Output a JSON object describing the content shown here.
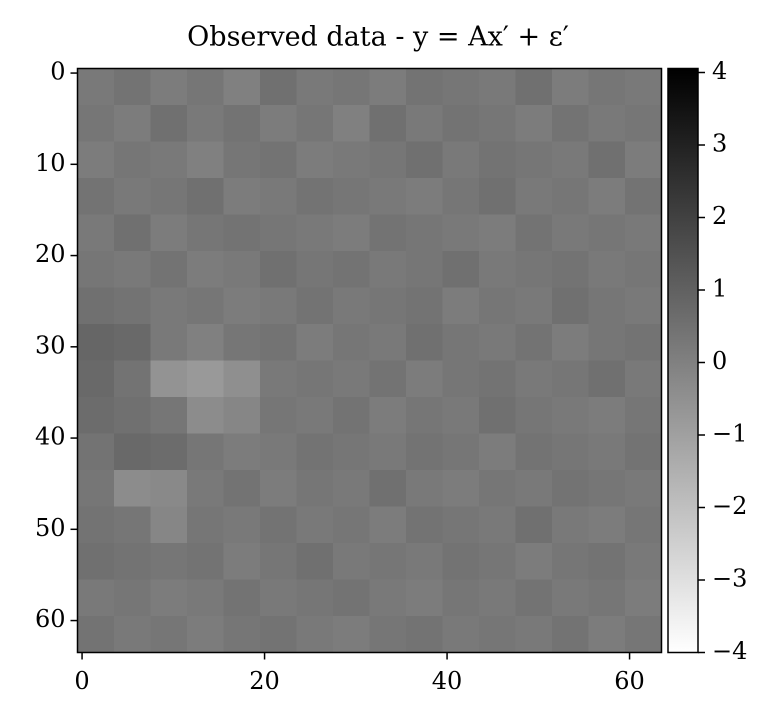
{
  "chart_data": {
    "type": "heatmap",
    "title": "Observed data - y = Ax′ + ε′",
    "colormap": "gray_r",
    "xlim": [
      -0.5,
      63.5
    ],
    "ylim": [
      63.5,
      -0.5
    ],
    "xticks": [
      0,
      20,
      40,
      60
    ],
    "yticks": [
      0,
      10,
      20,
      30,
      40,
      50,
      60
    ],
    "colorbar": {
      "lim": [
        -4,
        4
      ],
      "ticks": [
        {
          "value": -4,
          "label": "−4"
        },
        {
          "value": -3,
          "label": "−3"
        },
        {
          "value": -2,
          "label": "−2"
        },
        {
          "value": -1,
          "label": "−1"
        },
        0,
        1,
        2,
        3,
        4
      ]
    },
    "values": [
      [
        0.2,
        0.4,
        0.1,
        0.3,
        0.0,
        0.5,
        0.2,
        0.3,
        0.1,
        0.4,
        0.3,
        0.2,
        0.5,
        0.1,
        0.3,
        0.2
      ],
      [
        0.3,
        0.1,
        0.5,
        0.2,
        0.4,
        0.1,
        0.3,
        0.0,
        0.5,
        0.2,
        0.4,
        0.3,
        0.1,
        0.4,
        0.2,
        0.3
      ],
      [
        0.1,
        0.3,
        0.2,
        0.0,
        0.3,
        0.4,
        0.1,
        0.2,
        0.3,
        0.5,
        0.2,
        0.4,
        0.3,
        0.2,
        0.5,
        0.1
      ],
      [
        0.4,
        0.2,
        0.3,
        0.5,
        0.1,
        0.2,
        0.4,
        0.3,
        0.2,
        0.1,
        0.3,
        0.5,
        0.2,
        0.3,
        0.1,
        0.4
      ],
      [
        0.2,
        0.5,
        0.1,
        0.3,
        0.4,
        0.3,
        0.2,
        0.1,
        0.4,
        0.3,
        0.2,
        0.1,
        0.4,
        0.2,
        0.3,
        0.2
      ],
      [
        0.3,
        0.2,
        0.4,
        0.1,
        0.2,
        0.5,
        0.3,
        0.4,
        0.2,
        0.3,
        0.5,
        0.2,
        0.3,
        0.4,
        0.2,
        0.3
      ],
      [
        0.5,
        0.4,
        0.2,
        0.3,
        0.1,
        0.2,
        0.4,
        0.2,
        0.3,
        0.4,
        0.1,
        0.3,
        0.2,
        0.5,
        0.3,
        0.2
      ],
      [
        0.8,
        0.7,
        0.2,
        0.0,
        0.3,
        0.4,
        0.1,
        0.3,
        0.2,
        0.5,
        0.3,
        0.2,
        0.4,
        0.1,
        0.3,
        0.4
      ],
      [
        0.7,
        0.4,
        -0.6,
        -0.8,
        -0.5,
        0.2,
        0.3,
        0.2,
        0.4,
        0.1,
        0.3,
        0.4,
        0.2,
        0.3,
        0.5,
        0.2
      ],
      [
        0.6,
        0.5,
        0.3,
        -0.4,
        -0.2,
        0.3,
        0.2,
        0.4,
        0.1,
        0.3,
        0.2,
        0.5,
        0.3,
        0.2,
        0.1,
        0.3
      ],
      [
        0.4,
        0.7,
        0.6,
        0.3,
        0.1,
        0.2,
        0.4,
        0.3,
        0.2,
        0.4,
        0.3,
        0.1,
        0.4,
        0.3,
        0.2,
        0.4
      ],
      [
        0.3,
        -0.4,
        -0.3,
        0.2,
        0.4,
        0.1,
        0.3,
        0.2,
        0.5,
        0.2,
        0.1,
        0.3,
        0.2,
        0.4,
        0.3,
        0.2
      ],
      [
        0.4,
        0.3,
        -0.2,
        0.3,
        0.2,
        0.4,
        0.2,
        0.3,
        0.1,
        0.4,
        0.3,
        0.2,
        0.5,
        0.2,
        0.1,
        0.3
      ],
      [
        0.5,
        0.4,
        0.3,
        0.4,
        0.1,
        0.3,
        0.5,
        0.2,
        0.3,
        0.2,
        0.4,
        0.3,
        0.1,
        0.3,
        0.4,
        0.2
      ],
      [
        0.2,
        0.3,
        0.1,
        0.2,
        0.4,
        0.2,
        0.3,
        0.4,
        0.2,
        0.1,
        0.3,
        0.2,
        0.4,
        0.2,
        0.3,
        0.1
      ],
      [
        0.4,
        0.2,
        0.3,
        0.1,
        0.3,
        0.4,
        0.2,
        0.1,
        0.3,
        0.4,
        0.2,
        0.3,
        0.2,
        0.4,
        0.1,
        0.3
      ]
    ]
  }
}
